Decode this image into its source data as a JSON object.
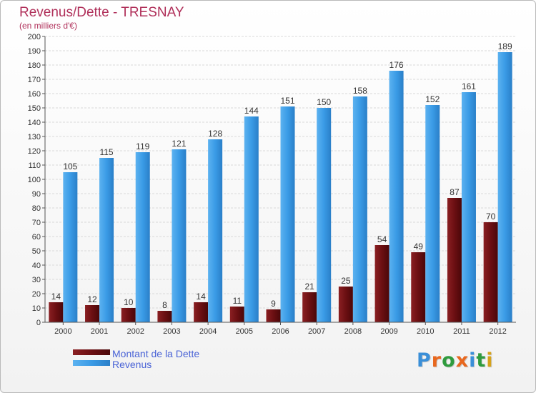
{
  "chart_data": {
    "type": "bar",
    "title": "Revenus/Dette - TRESNAY",
    "subtitle": "(en milliers d'€)",
    "categories": [
      "2000",
      "2001",
      "2002",
      "2003",
      "2004",
      "2005",
      "2006",
      "2007",
      "2008",
      "2009",
      "2010",
      "2011",
      "2012"
    ],
    "series": [
      {
        "name": "Montant de la Dette",
        "values": [
          14,
          12,
          10,
          8,
          14,
          11,
          9,
          21,
          25,
          54,
          49,
          87,
          70
        ],
        "color": "#6b0f12"
      },
      {
        "name": "Revenus",
        "values": [
          105,
          115,
          119,
          121,
          128,
          144,
          151,
          150,
          158,
          176,
          152,
          161,
          189
        ],
        "color": "#3a9be6"
      }
    ],
    "ylim": [
      0,
      200
    ],
    "ytick_step": 10,
    "grid": true,
    "legend_position": "bottom-left"
  },
  "logo": {
    "text": "Proxiti",
    "letters": [
      {
        "char": "P",
        "color": "#3a8fd8"
      },
      {
        "char": "r",
        "color": "#e8681f"
      },
      {
        "char": "o",
        "color": "#2f9b3e"
      },
      {
        "char": "x",
        "color": "#e8681f"
      },
      {
        "char": "i",
        "color": "#3a8fd8"
      },
      {
        "char": "t",
        "color": "#2f9b3e"
      },
      {
        "char": "i",
        "color": "#d6a21a"
      }
    ]
  }
}
